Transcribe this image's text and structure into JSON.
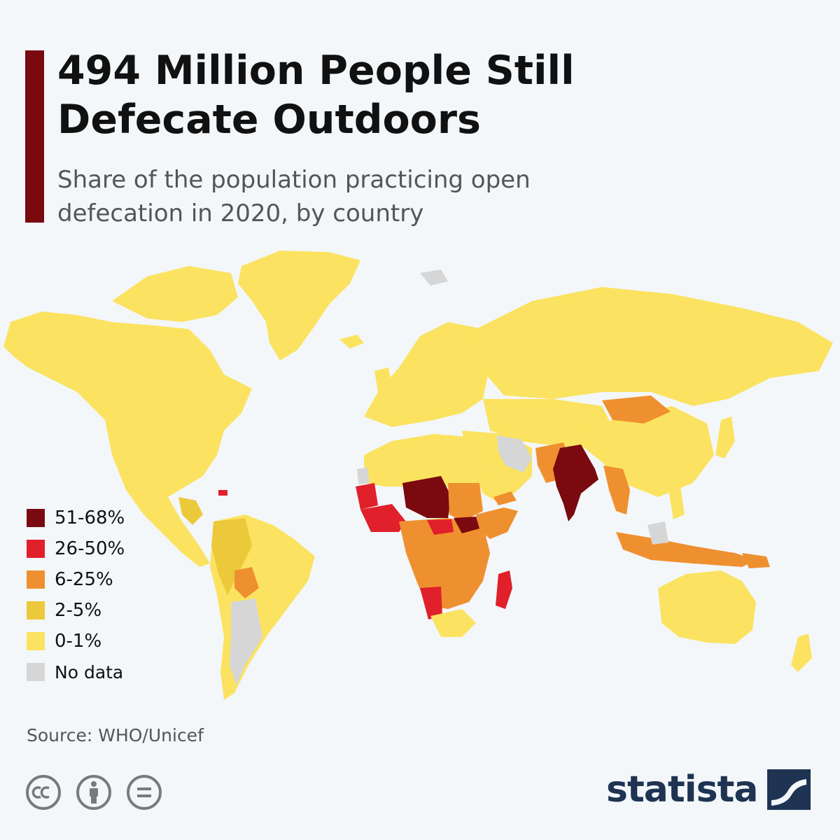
{
  "header": {
    "title": "494 Million People Still Defecate Outdoors",
    "subtitle": "Share of the population practicing open defecation in 2020, by country"
  },
  "legend": {
    "items": [
      {
        "label": "51-68%",
        "color": "#7a0a0f"
      },
      {
        "label": "26-50%",
        "color": "#e0202a"
      },
      {
        "label": "6-25%",
        "color": "#ef9030"
      },
      {
        "label": "2-5%",
        "color": "#ecc93a"
      },
      {
        "label": "0-1%",
        "color": "#fbe361"
      },
      {
        "label": "No data",
        "color": "#d6d6d6"
      }
    ]
  },
  "map": {
    "colors": {
      "ocean": "#f3f7fa",
      "level_51_68": "#7a0a0f",
      "level_26_50": "#e0202a",
      "level_6_25": "#ef9030",
      "level_2_5": "#ecc93a",
      "level_0_1": "#fbe361",
      "no_data": "#d6d6d6"
    }
  },
  "footer": {
    "source": "Source: WHO/Unicef",
    "license_icons": [
      "creative-commons-icon",
      "attribution-icon",
      "no-derivatives-icon"
    ],
    "brand": "statista"
  }
}
